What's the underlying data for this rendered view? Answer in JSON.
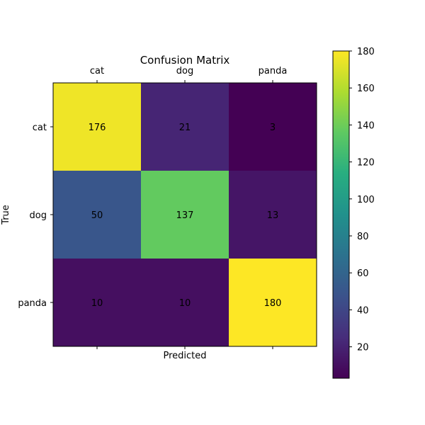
{
  "chart_data": {
    "type": "heatmap",
    "title": "Confusion Matrix",
    "xlabel": "Predicted",
    "ylabel": "True",
    "x_labels": [
      "cat",
      "dog",
      "panda"
    ],
    "y_labels": [
      "cat",
      "dog",
      "panda"
    ],
    "values": [
      [
        176,
        21,
        3
      ],
      [
        50,
        137,
        13
      ],
      [
        10,
        10,
        180
      ]
    ],
    "colormap": "viridis",
    "colorbar": {
      "range": [
        3,
        180
      ],
      "ticks": [
        20,
        40,
        60,
        80,
        100,
        120,
        140,
        160,
        180
      ]
    },
    "x_axis_label_position": "top",
    "grid": false
  }
}
